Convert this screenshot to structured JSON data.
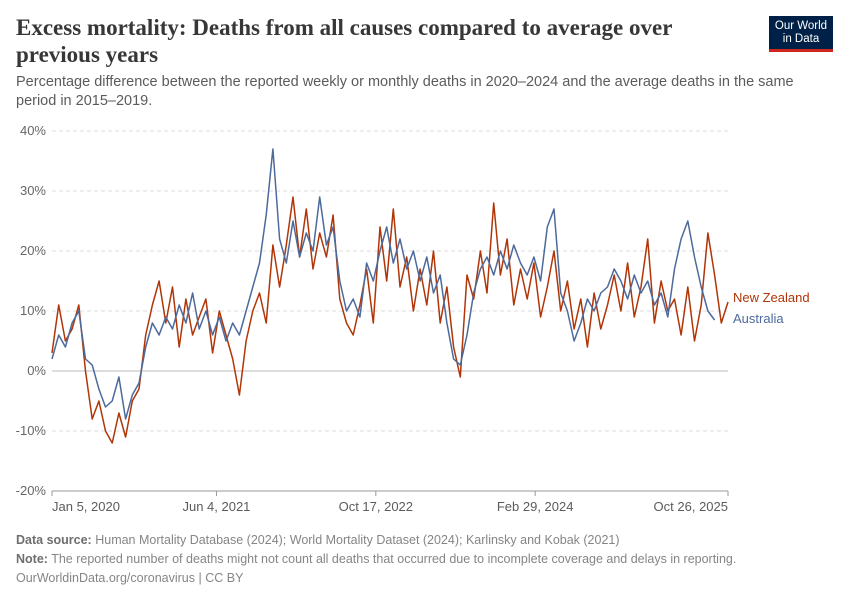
{
  "header": {
    "title": "Excess mortality: Deaths from all causes compared to average over previous years",
    "subtitle": "Percentage difference between the reported weekly or monthly deaths in 2020–2024 and the average deaths in the same period in 2015–2019."
  },
  "logo": {
    "line1": "Our World",
    "line2": "in Data"
  },
  "footer": {
    "source_label": "Data source:",
    "source_text": "Human Mortality Database (2024); World Mortality Dataset (2024); Karlinsky and Kobak (2021)",
    "note_label": "Note:",
    "note_text": "The reported number of deaths might not count all deaths that occurred due to incomplete coverage and delays in reporting.",
    "url": "OurWorldinData.org/coronavirus | CC BY"
  },
  "colors": {
    "new_zealand": "#b13507",
    "australia": "#4c6a9c",
    "grid": "#dddddd",
    "zero": "#bbbbbb"
  },
  "chart_data": {
    "type": "line",
    "title": "Excess mortality: Deaths from all causes compared to average over previous years",
    "x_type": "date",
    "xlim": [
      "2020-01-05",
      "2025-10-26"
    ],
    "ylim": [
      -20,
      40
    ],
    "y_unit": "%",
    "y_ticks": [
      -20,
      -10,
      0,
      10,
      20,
      30,
      40
    ],
    "y_tick_labels": [
      "-20%",
      "-10%",
      "0%",
      "10%",
      "20%",
      "30%",
      "40%"
    ],
    "x_ticks": [
      "2020-01-05",
      "2021-06-04",
      "2022-10-17",
      "2024-02-29",
      "2025-10-26"
    ],
    "x_tick_labels": [
      "Jan 5, 2020",
      "Jun 4, 2021",
      "Oct 17, 2022",
      "Feb 29, 2024",
      "Oct 26, 2025"
    ],
    "grid": "horizontal dashed",
    "legend": "inline labels at right end of lines",
    "series": [
      {
        "name": "New Zealand",
        "color": "#b13507",
        "points": [
          [
            "2020-01-05",
            3
          ],
          [
            "2020-01-26",
            11
          ],
          [
            "2020-02-16",
            5
          ],
          [
            "2020-03-08",
            7
          ],
          [
            "2020-03-29",
            11
          ],
          [
            "2020-04-19",
            0
          ],
          [
            "2020-05-10",
            -8
          ],
          [
            "2020-05-31",
            -5
          ],
          [
            "2020-06-21",
            -10
          ],
          [
            "2020-07-12",
            -12
          ],
          [
            "2020-08-02",
            -7
          ],
          [
            "2020-08-23",
            -11
          ],
          [
            "2020-09-13",
            -5
          ],
          [
            "2020-10-04",
            -3
          ],
          [
            "2020-10-25",
            6
          ],
          [
            "2020-11-15",
            11
          ],
          [
            "2020-12-06",
            15
          ],
          [
            "2020-12-27",
            8
          ],
          [
            "2021-01-17",
            14
          ],
          [
            "2021-02-07",
            4
          ],
          [
            "2021-02-28",
            12
          ],
          [
            "2021-03-21",
            6
          ],
          [
            "2021-04-11",
            9
          ],
          [
            "2021-05-02",
            12
          ],
          [
            "2021-05-23",
            3
          ],
          [
            "2021-06-13",
            10
          ],
          [
            "2021-07-04",
            6
          ],
          [
            "2021-07-25",
            2
          ],
          [
            "2021-08-15",
            -4
          ],
          [
            "2021-09-05",
            5
          ],
          [
            "2021-09-26",
            10
          ],
          [
            "2021-10-17",
            13
          ],
          [
            "2021-11-07",
            8
          ],
          [
            "2021-11-28",
            21
          ],
          [
            "2021-12-19",
            14
          ],
          [
            "2022-01-09",
            21
          ],
          [
            "2022-01-30",
            29
          ],
          [
            "2022-02-20",
            19
          ],
          [
            "2022-03-13",
            27
          ],
          [
            "2022-04-03",
            17
          ],
          [
            "2022-04-24",
            23
          ],
          [
            "2022-05-15",
            19
          ],
          [
            "2022-06-05",
            26
          ],
          [
            "2022-06-26",
            12
          ],
          [
            "2022-07-17",
            8
          ],
          [
            "2022-08-07",
            6
          ],
          [
            "2022-08-28",
            11
          ],
          [
            "2022-09-18",
            17
          ],
          [
            "2022-10-09",
            8
          ],
          [
            "2022-10-30",
            24
          ],
          [
            "2022-11-20",
            15
          ],
          [
            "2022-12-11",
            27
          ],
          [
            "2023-01-01",
            14
          ],
          [
            "2023-01-22",
            19
          ],
          [
            "2023-02-12",
            10
          ],
          [
            "2023-03-05",
            17
          ],
          [
            "2023-03-26",
            11
          ],
          [
            "2023-04-16",
            20
          ],
          [
            "2023-05-07",
            8
          ],
          [
            "2023-05-28",
            14
          ],
          [
            "2023-06-18",
            4
          ],
          [
            "2023-07-09",
            -1
          ],
          [
            "2023-07-30",
            16
          ],
          [
            "2023-08-20",
            12
          ],
          [
            "2023-09-10",
            20
          ],
          [
            "2023-10-01",
            13
          ],
          [
            "2023-10-22",
            28
          ],
          [
            "2023-11-12",
            16
          ],
          [
            "2023-12-03",
            22
          ],
          [
            "2023-12-24",
            11
          ],
          [
            "2024-01-14",
            17
          ],
          [
            "2024-02-04",
            12
          ],
          [
            "2024-02-25",
            18
          ],
          [
            "2024-03-17",
            9
          ],
          [
            "2024-04-07",
            14
          ],
          [
            "2024-04-28",
            20
          ],
          [
            "2024-05-19",
            10
          ],
          [
            "2024-06-09",
            15
          ],
          [
            "2024-06-30",
            7
          ],
          [
            "2024-07-21",
            12
          ],
          [
            "2024-08-11",
            4
          ],
          [
            "2024-09-01",
            13
          ],
          [
            "2024-09-22",
            7
          ],
          [
            "2024-10-13",
            11
          ],
          [
            "2024-11-03",
            16
          ],
          [
            "2024-11-24",
            10
          ],
          [
            "2024-12-15",
            18
          ],
          [
            "2025-01-05",
            9
          ],
          [
            "2025-01-26",
            14
          ],
          [
            "2025-02-16",
            22
          ],
          [
            "2025-03-09",
            8
          ],
          [
            "2025-03-30",
            15
          ],
          [
            "2025-04-20",
            10
          ],
          [
            "2025-05-11",
            12
          ],
          [
            "2025-06-01",
            6
          ],
          [
            "2025-06-22",
            14
          ],
          [
            "2025-07-13",
            5
          ],
          [
            "2025-08-03",
            11
          ],
          [
            "2025-08-24",
            23
          ],
          [
            "2025-09-14",
            16
          ],
          [
            "2025-10-05",
            8
          ],
          [
            "2025-10-26",
            11.5
          ]
        ]
      },
      {
        "name": "Australia",
        "color": "#4c6a9c",
        "points": [
          [
            "2020-01-05",
            2
          ],
          [
            "2020-01-26",
            6
          ],
          [
            "2020-02-16",
            4
          ],
          [
            "2020-03-08",
            8
          ],
          [
            "2020-03-29",
            10
          ],
          [
            "2020-04-19",
            2
          ],
          [
            "2020-05-10",
            1
          ],
          [
            "2020-05-31",
            -3
          ],
          [
            "2020-06-21",
            -6
          ],
          [
            "2020-07-12",
            -5
          ],
          [
            "2020-08-02",
            -1
          ],
          [
            "2020-08-23",
            -8
          ],
          [
            "2020-09-13",
            -4
          ],
          [
            "2020-10-04",
            -2
          ],
          [
            "2020-10-25",
            4
          ],
          [
            "2020-11-15",
            8
          ],
          [
            "2020-12-06",
            6
          ],
          [
            "2020-12-27",
            9
          ],
          [
            "2021-01-17",
            7
          ],
          [
            "2021-02-07",
            11
          ],
          [
            "2021-02-28",
            8
          ],
          [
            "2021-03-21",
            13
          ],
          [
            "2021-04-11",
            7
          ],
          [
            "2021-05-02",
            10
          ],
          [
            "2021-05-23",
            6
          ],
          [
            "2021-06-13",
            9
          ],
          [
            "2021-07-04",
            5
          ],
          [
            "2021-07-25",
            8
          ],
          [
            "2021-08-15",
            6
          ],
          [
            "2021-09-05",
            10
          ],
          [
            "2021-09-26",
            14
          ],
          [
            "2021-10-17",
            18
          ],
          [
            "2021-11-07",
            26
          ],
          [
            "2021-11-28",
            37
          ],
          [
            "2021-12-19",
            22
          ],
          [
            "2022-01-09",
            18
          ],
          [
            "2022-01-30",
            25
          ],
          [
            "2022-02-20",
            19
          ],
          [
            "2022-03-13",
            23
          ],
          [
            "2022-04-03",
            20
          ],
          [
            "2022-04-24",
            29
          ],
          [
            "2022-05-15",
            21
          ],
          [
            "2022-06-05",
            24
          ],
          [
            "2022-06-26",
            15
          ],
          [
            "2022-07-17",
            10
          ],
          [
            "2022-08-07",
            12
          ],
          [
            "2022-08-28",
            9
          ],
          [
            "2022-09-18",
            18
          ],
          [
            "2022-10-09",
            15
          ],
          [
            "2022-10-30",
            20
          ],
          [
            "2022-11-20",
            24
          ],
          [
            "2022-12-11",
            18
          ],
          [
            "2023-01-01",
            22
          ],
          [
            "2023-01-22",
            17
          ],
          [
            "2023-02-12",
            20
          ],
          [
            "2023-03-05",
            15
          ],
          [
            "2023-03-26",
            19
          ],
          [
            "2023-04-16",
            13
          ],
          [
            "2023-05-07",
            16
          ],
          [
            "2023-05-28",
            8
          ],
          [
            "2023-06-18",
            2
          ],
          [
            "2023-07-09",
            1
          ],
          [
            "2023-07-30",
            6
          ],
          [
            "2023-08-20",
            13
          ],
          [
            "2023-09-10",
            17
          ],
          [
            "2023-10-01",
            19
          ],
          [
            "2023-10-22",
            16
          ],
          [
            "2023-11-12",
            20
          ],
          [
            "2023-12-03",
            17
          ],
          [
            "2023-12-24",
            21
          ],
          [
            "2024-01-14",
            18
          ],
          [
            "2024-02-04",
            16
          ],
          [
            "2024-02-25",
            19
          ],
          [
            "2024-03-17",
            15
          ],
          [
            "2024-04-07",
            24
          ],
          [
            "2024-04-28",
            27
          ],
          [
            "2024-05-19",
            13
          ],
          [
            "2024-06-09",
            10
          ],
          [
            "2024-06-30",
            5
          ],
          [
            "2024-07-21",
            8
          ],
          [
            "2024-08-11",
            12
          ],
          [
            "2024-09-01",
            10
          ],
          [
            "2024-09-22",
            13
          ],
          [
            "2024-10-13",
            14
          ],
          [
            "2024-11-03",
            17
          ],
          [
            "2024-11-24",
            15
          ],
          [
            "2024-12-15",
            12
          ],
          [
            "2025-01-05",
            16
          ],
          [
            "2025-01-26",
            13
          ],
          [
            "2025-02-16",
            15
          ],
          [
            "2025-03-09",
            11
          ],
          [
            "2025-03-30",
            13
          ],
          [
            "2025-04-20",
            9
          ],
          [
            "2025-05-11",
            17
          ],
          [
            "2025-06-01",
            22
          ],
          [
            "2025-06-22",
            25
          ],
          [
            "2025-07-13",
            19
          ],
          [
            "2025-08-03",
            14
          ],
          [
            "2025-08-24",
            10
          ],
          [
            "2025-09-14",
            8.5
          ]
        ]
      }
    ]
  }
}
